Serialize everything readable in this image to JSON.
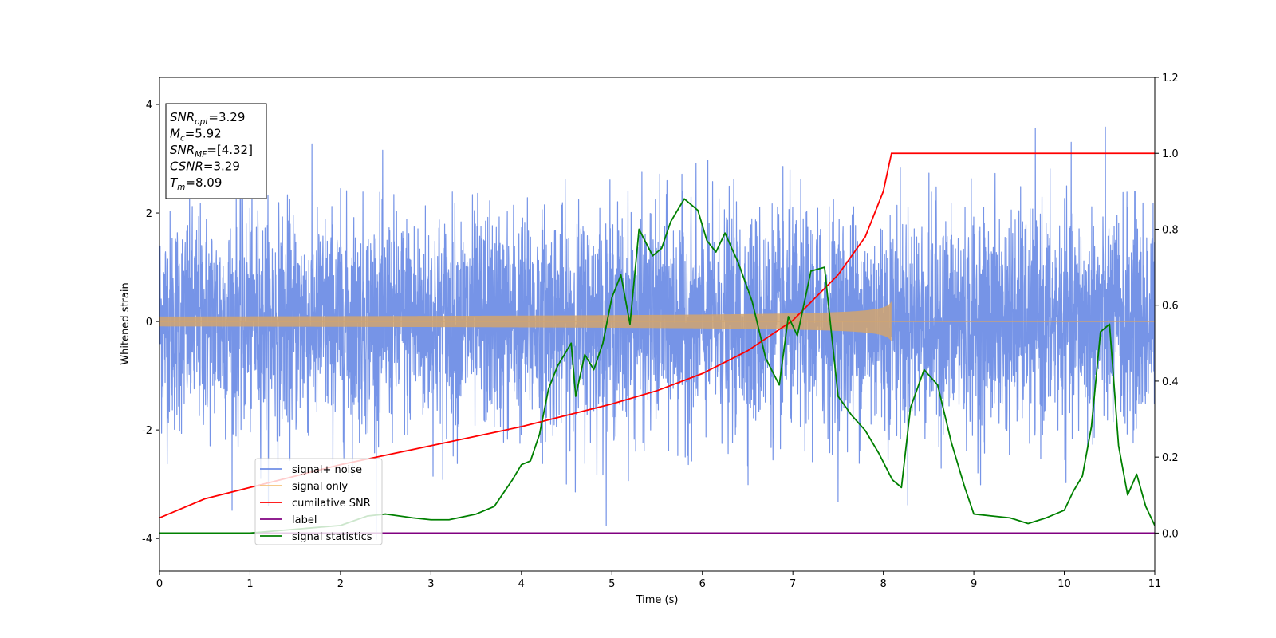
{
  "chart_data": {
    "type": "line",
    "xlabel": "Time (s)",
    "ylabel": "Whitened strain",
    "xlim": [
      0,
      11
    ],
    "ylim_left": [
      -4.6,
      4.5
    ],
    "ylim_right": [
      -0.1,
      1.2
    ],
    "x_ticks": [
      0,
      1,
      2,
      3,
      4,
      5,
      6,
      7,
      8,
      9,
      10,
      11
    ],
    "y_left_ticks": [
      -4,
      -2,
      0,
      2,
      4
    ],
    "y_right_ticks": [
      "0.0",
      "0.2",
      "0.4",
      "0.6",
      "0.8",
      "1.0",
      "1.2"
    ],
    "y_right_tick_values": [
      0.0,
      0.2,
      0.4,
      0.6,
      0.8,
      1.0,
      1.2
    ],
    "grid": false,
    "legend_placement": "lower-left",
    "annotation_lines": [
      {
        "base": "SNR",
        "sub": "opt",
        "rest": "=3.29"
      },
      {
        "base": "M",
        "sub": "c",
        "rest": "=5.92"
      },
      {
        "base": "SNR",
        "sub": "MF",
        "rest": "=[4.32]"
      },
      {
        "base": "CSNR",
        "sub": "",
        "rest": "=3.29"
      },
      {
        "base": "T",
        "sub": "m",
        "rest": "=8.09"
      }
    ],
    "series": [
      {
        "name": "signal+ noise",
        "color": "#6f8ee6",
        "axis": "left",
        "style": "noise",
        "amplitude_sigma": 1.0,
        "x_range": [
          0,
          11
        ]
      },
      {
        "name": "signal only",
        "color": "#f5c27a",
        "axis": "left",
        "style": "chirp",
        "merger_time": 8.09,
        "peak_amplitude": 0.37
      },
      {
        "name": "cumilative SNR",
        "color": "#ff0000",
        "axis": "right",
        "x": [
          0,
          0.5,
          1,
          1.5,
          2,
          2.5,
          3,
          3.5,
          4,
          4.5,
          5,
          5.5,
          6,
          6.5,
          7,
          7.5,
          7.8,
          8.0,
          8.09,
          8.1,
          11
        ],
        "y": [
          0.04,
          0.09,
          0.12,
          0.15,
          0.18,
          0.205,
          0.23,
          0.255,
          0.28,
          0.31,
          0.34,
          0.375,
          0.42,
          0.48,
          0.56,
          0.68,
          0.78,
          0.9,
          1.0,
          1.0,
          1.0
        ]
      },
      {
        "name": "label",
        "color": "#800080",
        "axis": "right",
        "x": [
          0,
          11
        ],
        "y": [
          0.0,
          0.0
        ]
      },
      {
        "name": "signal statistics",
        "color": "#008000",
        "axis": "right",
        "x": [
          0,
          1,
          2,
          2.3,
          2.5,
          2.8,
          3.0,
          3.2,
          3.5,
          3.7,
          3.9,
          4.0,
          4.1,
          4.2,
          4.3,
          4.4,
          4.5,
          4.55,
          4.6,
          4.7,
          4.8,
          4.9,
          5.0,
          5.1,
          5.2,
          5.3,
          5.45,
          5.55,
          5.65,
          5.8,
          5.95,
          6.05,
          6.15,
          6.25,
          6.4,
          6.55,
          6.7,
          6.85,
          6.95,
          7.05,
          7.2,
          7.35,
          7.5,
          7.65,
          7.8,
          7.95,
          8.1,
          8.2,
          8.3,
          8.45,
          8.6,
          8.75,
          8.9,
          9.0,
          9.2,
          9.4,
          9.6,
          9.8,
          10.0,
          10.1,
          10.2,
          10.3,
          10.4,
          10.5,
          10.6,
          10.7,
          10.8,
          10.9,
          11.0
        ],
        "y": [
          0.0,
          0.0,
          0.02,
          0.045,
          0.05,
          0.04,
          0.035,
          0.035,
          0.05,
          0.07,
          0.14,
          0.18,
          0.19,
          0.26,
          0.38,
          0.44,
          0.48,
          0.5,
          0.36,
          0.47,
          0.43,
          0.5,
          0.62,
          0.68,
          0.55,
          0.8,
          0.73,
          0.75,
          0.82,
          0.88,
          0.85,
          0.77,
          0.74,
          0.79,
          0.71,
          0.61,
          0.46,
          0.39,
          0.57,
          0.52,
          0.69,
          0.7,
          0.36,
          0.31,
          0.27,
          0.21,
          0.14,
          0.12,
          0.33,
          0.43,
          0.39,
          0.24,
          0.12,
          0.05,
          0.045,
          0.04,
          0.025,
          0.04,
          0.06,
          0.11,
          0.15,
          0.28,
          0.53,
          0.55,
          0.23,
          0.1,
          0.155,
          0.07,
          0.02
        ]
      }
    ]
  }
}
